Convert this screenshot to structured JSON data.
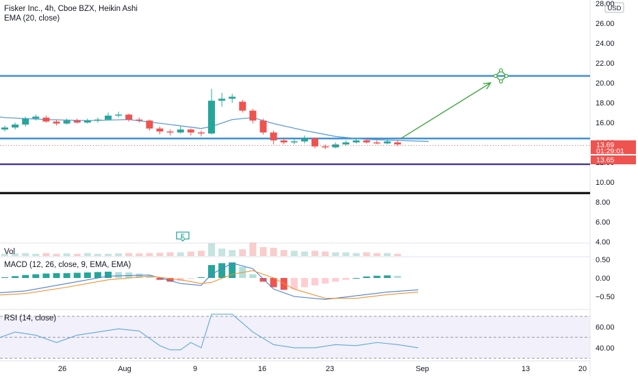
{
  "legend": {
    "title": "Fisker Inc., 4h, Cboe BZX, Heikin Ashi",
    "ema": "EMA (20, close)"
  },
  "colors": {
    "up": "#26a69a",
    "down": "#ef5350",
    "ema": "#5b9bd5",
    "hline_blue": "#3d8fd6",
    "hline_purple": "#4b3b9a",
    "hline_black": "#000000",
    "arrow": "#3aa53a",
    "macd": "#4a7fd4",
    "signal": "#f0902a",
    "rsi": "#5aa9d6",
    "price_tag": "#ef5350"
  },
  "price_axis": {
    "currency": "USD",
    "ticks": [
      "28.00",
      "26.00",
      "24.00",
      "22.00",
      "20.00",
      "18.00",
      "16.00",
      "14.00",
      "12.00",
      "10.00",
      "8.00",
      "6.00",
      "4.00"
    ],
    "last_price": "13.69",
    "countdown": "01:29:01",
    "second_price": "13.65"
  },
  "macd_axis": {
    "ticks": [
      "0.50",
      "0.00",
      "−0.50"
    ]
  },
  "rsi_axis": {
    "ticks": [
      "60.00",
      "40.00"
    ]
  },
  "time_axis": {
    "labels": [
      "26",
      "Aug",
      "9",
      "16",
      "23",
      "Sep",
      "13",
      "20"
    ]
  },
  "panes": {
    "vol": "Vol",
    "macd": "MACD (12, 26, close, 9, EMA, EMA)",
    "rsi": "RSI (14, close)"
  },
  "earnings_marker": "E",
  "chart_data": {
    "type": "candlestick",
    "style": "Heikin Ashi",
    "ylim": [
      4,
      28
    ],
    "horizontal_lines": [
      20.7,
      14.4,
      11.8,
      8.9
    ],
    "projection_arrow": {
      "from": [
        38,
        14.4
      ],
      "to": [
        47,
        20.0
      ]
    },
    "target_marker": {
      "x": 48,
      "y": 20.7
    },
    "candles": [
      {
        "i": 0,
        "o": 15.3,
        "c": 15.5,
        "h": 15.7,
        "l": 15.1
      },
      {
        "i": 1,
        "o": 15.5,
        "c": 15.8,
        "h": 16.0,
        "l": 15.3
      },
      {
        "i": 2,
        "o": 15.8,
        "c": 16.4,
        "h": 16.6,
        "l": 15.6
      },
      {
        "i": 3,
        "o": 16.4,
        "c": 16.6,
        "h": 16.8,
        "l": 16.2
      },
      {
        "i": 4,
        "o": 16.5,
        "c": 16.1,
        "h": 16.7,
        "l": 16.0
      },
      {
        "i": 5,
        "o": 16.1,
        "c": 15.9,
        "h": 16.3,
        "l": 15.7
      },
      {
        "i": 6,
        "o": 15.9,
        "c": 16.2,
        "h": 16.4,
        "l": 15.8
      },
      {
        "i": 7,
        "o": 16.2,
        "c": 16.0,
        "h": 16.4,
        "l": 15.9
      },
      {
        "i": 8,
        "o": 16.0,
        "c": 16.2,
        "h": 16.4,
        "l": 15.9
      },
      {
        "i": 9,
        "o": 16.2,
        "c": 16.3,
        "h": 16.5,
        "l": 16.0
      },
      {
        "i": 10,
        "o": 16.3,
        "c": 16.7,
        "h": 17.0,
        "l": 16.2
      },
      {
        "i": 11,
        "o": 16.7,
        "c": 16.8,
        "h": 17.1,
        "l": 16.5
      },
      {
        "i": 12,
        "o": 16.8,
        "c": 16.3,
        "h": 16.9,
        "l": 16.1
      },
      {
        "i": 13,
        "o": 16.3,
        "c": 16.2,
        "h": 16.5,
        "l": 16.0
      },
      {
        "i": 14,
        "o": 16.2,
        "c": 15.4,
        "h": 16.3,
        "l": 15.2
      },
      {
        "i": 15,
        "o": 15.4,
        "c": 15.1,
        "h": 15.6,
        "l": 14.8
      },
      {
        "i": 16,
        "o": 15.1,
        "c": 15.0,
        "h": 15.3,
        "l": 14.7
      },
      {
        "i": 17,
        "o": 15.0,
        "c": 15.3,
        "h": 15.6,
        "l": 14.9
      },
      {
        "i": 18,
        "o": 15.3,
        "c": 15.0,
        "h": 15.4,
        "l": 14.7
      },
      {
        "i": 19,
        "o": 15.0,
        "c": 14.9,
        "h": 15.2,
        "l": 14.6
      },
      {
        "i": 20,
        "o": 14.9,
        "c": 18.2,
        "h": 19.4,
        "l": 14.8
      },
      {
        "i": 21,
        "o": 18.2,
        "c": 18.4,
        "h": 19.0,
        "l": 17.6
      },
      {
        "i": 22,
        "o": 18.4,
        "c": 18.6,
        "h": 18.9,
        "l": 18.0
      },
      {
        "i": 23,
        "o": 18.1,
        "c": 17.2,
        "h": 18.3,
        "l": 17.0
      },
      {
        "i": 24,
        "o": 17.2,
        "c": 16.2,
        "h": 17.4,
        "l": 15.9
      },
      {
        "i": 25,
        "o": 16.2,
        "c": 15.0,
        "h": 16.4,
        "l": 14.8
      },
      {
        "i": 26,
        "o": 15.0,
        "c": 14.2,
        "h": 15.2,
        "l": 13.8
      },
      {
        "i": 27,
        "o": 14.2,
        "c": 14.0,
        "h": 14.5,
        "l": 13.8
      },
      {
        "i": 28,
        "o": 14.0,
        "c": 14.1,
        "h": 14.3,
        "l": 13.8
      },
      {
        "i": 29,
        "o": 14.1,
        "c": 14.4,
        "h": 14.7,
        "l": 13.9
      },
      {
        "i": 30,
        "o": 14.4,
        "c": 13.6,
        "h": 14.5,
        "l": 13.4
      },
      {
        "i": 31,
        "o": 13.6,
        "c": 13.5,
        "h": 13.8,
        "l": 13.3
      },
      {
        "i": 32,
        "o": 13.5,
        "c": 13.8,
        "h": 14.0,
        "l": 13.4
      },
      {
        "i": 33,
        "o": 13.8,
        "c": 14.0,
        "h": 14.2,
        "l": 13.7
      },
      {
        "i": 34,
        "o": 14.0,
        "c": 14.2,
        "h": 14.4,
        "l": 13.9
      },
      {
        "i": 35,
        "o": 14.2,
        "c": 14.0,
        "h": 14.4,
        "l": 13.9
      },
      {
        "i": 36,
        "o": 14.0,
        "c": 13.9,
        "h": 14.2,
        "l": 13.8
      },
      {
        "i": 37,
        "o": 13.9,
        "c": 14.1,
        "h": 14.3,
        "l": 13.8
      },
      {
        "i": 38,
        "o": 14.0,
        "c": 13.8,
        "h": 14.2,
        "l": 13.6
      }
    ],
    "ema_points": [
      [
        -3,
        16.9
      ],
      [
        0,
        16.5
      ],
      [
        4,
        16.3
      ],
      [
        8,
        16.2
      ],
      [
        12,
        16.3
      ],
      [
        16,
        15.8
      ],
      [
        19,
        15.4
      ],
      [
        20,
        15.6
      ],
      [
        22,
        16.3
      ],
      [
        24,
        16.5
      ],
      [
        26,
        15.9
      ],
      [
        29,
        15.2
      ],
      [
        32,
        14.6
      ],
      [
        35,
        14.3
      ],
      [
        38,
        14.2
      ],
      [
        41,
        14.1
      ]
    ],
    "volume": [
      0.15,
      0.18,
      0.2,
      0.15,
      0.2,
      0.15,
      0.18,
      0.15,
      0.2,
      0.15,
      0.15,
      0.18,
      0.2,
      0.18,
      0.2,
      0.22,
      0.25,
      0.25,
      0.3,
      0.35,
      0.85,
      0.5,
      0.4,
      0.45,
      0.9,
      0.6,
      0.55,
      0.4,
      0.35,
      0.3,
      0.35,
      0.3,
      0.25,
      0.25,
      0.2,
      0.25,
      0.2,
      0.2,
      0.15
    ],
    "macd_hist": [
      0.02,
      0.05,
      0.08,
      0.1,
      0.12,
      0.13,
      0.13,
      0.14,
      0.15,
      0.16,
      0.17,
      0.16,
      0.15,
      0.12,
      0.05,
      -0.05,
      -0.1,
      -0.08,
      -0.02,
      0.02,
      0.35,
      0.4,
      0.42,
      0.3,
      0.1,
      -0.1,
      -0.25,
      -0.32,
      -0.3,
      -0.25,
      -0.2,
      -0.15,
      -0.1,
      -0.05,
      0.0,
      0.04,
      0.06,
      0.07,
      0.06
    ],
    "macd_line": [
      [
        -3,
        -0.45
      ],
      [
        2,
        -0.35
      ],
      [
        6,
        -0.15
      ],
      [
        10,
        0.05
      ],
      [
        14,
        0.08
      ],
      [
        17,
        -0.15
      ],
      [
        19,
        -0.2
      ],
      [
        20,
        0.1
      ],
      [
        22,
        0.4
      ],
      [
        24,
        0.25
      ],
      [
        26,
        -0.3
      ],
      [
        28,
        -0.5
      ],
      [
        31,
        -0.58
      ],
      [
        34,
        -0.48
      ],
      [
        37,
        -0.38
      ],
      [
        40,
        -0.32
      ]
    ],
    "signal_line": [
      [
        -3,
        -0.5
      ],
      [
        2,
        -0.42
      ],
      [
        6,
        -0.25
      ],
      [
        10,
        -0.05
      ],
      [
        14,
        0.05
      ],
      [
        17,
        -0.05
      ],
      [
        19,
        -0.15
      ],
      [
        20,
        -0.12
      ],
      [
        22,
        0.1
      ],
      [
        24,
        0.2
      ],
      [
        26,
        0.0
      ],
      [
        28,
        -0.3
      ],
      [
        31,
        -0.55
      ],
      [
        34,
        -0.55
      ],
      [
        37,
        -0.45
      ],
      [
        40,
        -0.38
      ]
    ],
    "rsi": [
      [
        -3,
        45
      ],
      [
        -1,
        48
      ],
      [
        1,
        55
      ],
      [
        3,
        52
      ],
      [
        5,
        45
      ],
      [
        7,
        52
      ],
      [
        9,
        55
      ],
      [
        11,
        58
      ],
      [
        13,
        56
      ],
      [
        15,
        42
      ],
      [
        16,
        38
      ],
      [
        17,
        38
      ],
      [
        18,
        45
      ],
      [
        19,
        40
      ],
      [
        20,
        72
      ],
      [
        22,
        72
      ],
      [
        24,
        55
      ],
      [
        26,
        43
      ],
      [
        28,
        40
      ],
      [
        30,
        40
      ],
      [
        32,
        43
      ],
      [
        34,
        42
      ],
      [
        36,
        45
      ],
      [
        38,
        43
      ],
      [
        40,
        40
      ]
    ],
    "rsi_band": [
      30,
      70
    ]
  }
}
